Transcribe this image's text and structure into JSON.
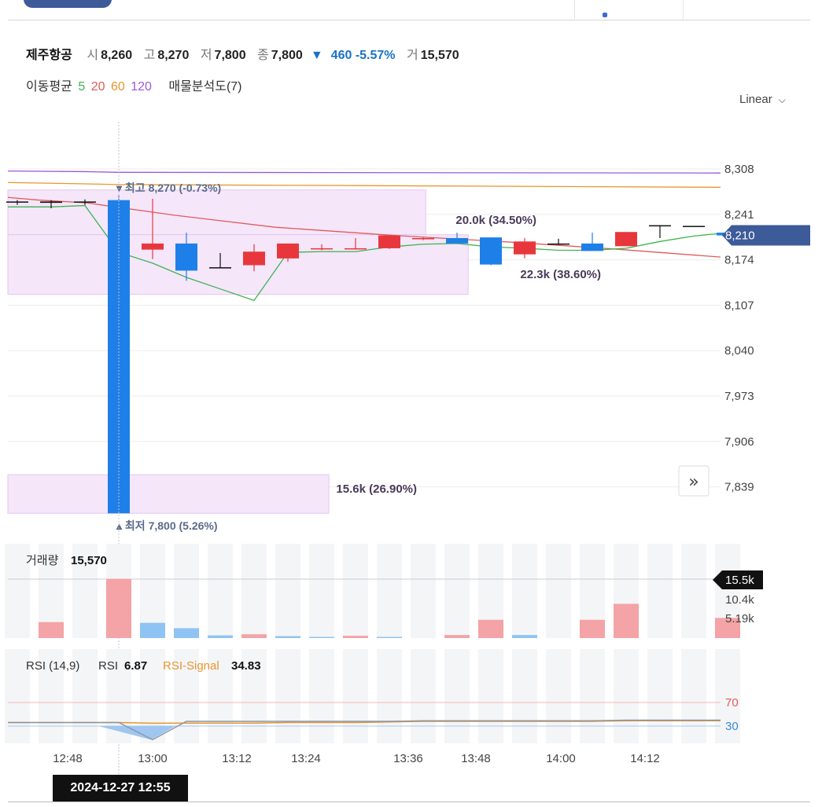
{
  "header": {
    "name": "제주항공",
    "open_label": "시",
    "open": "8,260",
    "high_label": "고",
    "high": "8,270",
    "low_label": "저",
    "low": "7,800",
    "close_label": "종",
    "close": "7,800",
    "change_arrow": "▼",
    "change": "460 -5.57%",
    "volume_label": "거",
    "volume": "15,570"
  },
  "ma": {
    "label": "이동평균",
    "p5": "5",
    "p20": "20",
    "p60": "60",
    "p120": "120",
    "volume_profile": "매물분석도(7)"
  },
  "scale_mode": "Linear",
  "colors": {
    "up": "#e8373c",
    "down": "#1e7fe8",
    "ma5": "#3eb44f",
    "ma20": "#e25a5a",
    "ma60": "#e8962f",
    "ma120": "#9b59d6",
    "profile": "#f5e6fa",
    "rsi": "#8a96a8",
    "signal": "#e8962f"
  },
  "chart_data": {
    "type": "candlestick",
    "price_ticks": [
      "8,308",
      "8,241",
      "8,174",
      "8,107",
      "8,040",
      "7,973",
      "7,906",
      "7,839"
    ],
    "price_tick_values": [
      8308,
      8241,
      8174,
      8107,
      8040,
      7973,
      7906,
      7839
    ],
    "current_price": "8,210",
    "current_price_value": 8210,
    "time_ticks": [
      "12:48",
      "13:00",
      "13:12",
      "13:24",
      "13:36",
      "13:48",
      "14:00",
      "14:12"
    ],
    "candles": [
      {
        "o": 8260,
        "h": 8262,
        "l": 8255,
        "c": 8260
      },
      {
        "o": 8260,
        "h": 8262,
        "l": 8250,
        "c": 8258
      },
      {
        "o": 8260,
        "h": 8263,
        "l": 8255,
        "c": 8260
      },
      {
        "o": 8262,
        "h": 8270,
        "l": 7800,
        "c": 7800
      },
      {
        "o": 8189,
        "h": 8264,
        "l": 8175,
        "c": 8198
      },
      {
        "o": 8198,
        "h": 8214,
        "l": 8143,
        "c": 8158
      },
      {
        "o": 8163,
        "h": 8184,
        "l": 8162,
        "c": 8163
      },
      {
        "o": 8166,
        "h": 8197,
        "l": 8157,
        "c": 8186
      },
      {
        "o": 8176,
        "h": 8197,
        "l": 8171,
        "c": 8198
      },
      {
        "o": 8190,
        "h": 8197,
        "l": 8188,
        "c": 8191
      },
      {
        "o": 8190,
        "h": 8206,
        "l": 8189,
        "c": 8191
      },
      {
        "o": 8191,
        "h": 8206,
        "l": 8190,
        "c": 8210
      },
      {
        "o": 8206,
        "h": 8207,
        "l": 8203,
        "c": 8206
      },
      {
        "o": 8206,
        "h": 8214,
        "l": 8198,
        "c": 8198
      },
      {
        "o": 8207,
        "h": 8207,
        "l": 8166,
        "c": 8167
      },
      {
        "o": 8182,
        "h": 8206,
        "l": 8176,
        "c": 8201
      },
      {
        "o": 8198,
        "h": 8205,
        "l": 8196,
        "c": 8198
      },
      {
        "o": 8198,
        "h": 8214,
        "l": 8187,
        "c": 8187
      },
      {
        "o": 8194,
        "h": 8215,
        "l": 8194,
        "c": 8215
      },
      {
        "o": 8225,
        "h": 8225,
        "l": 8206,
        "c": 8225
      },
      {
        "o": 8224,
        "h": 8224,
        "l": 8224,
        "c": 8224
      },
      {
        "o": 8214,
        "h": 8214,
        "l": 8206,
        "c": 8210
      }
    ],
    "ma5": [
      8252,
      8252,
      8254,
      8185,
      8169,
      8148,
      8131,
      8114,
      8185,
      8186,
      8186,
      8193,
      8197,
      8198,
      8193,
      8191,
      8188,
      8188,
      8191,
      8201,
      8209,
      8214
    ],
    "ma20": [
      8266,
      8262,
      8258
    ],
    "ma60": [
      8288,
      8286,
      8285,
      8281
    ],
    "ma120": [
      8305,
      8304,
      8303,
      8302
    ],
    "high_marker": "최고 8,270 (-0.73%)",
    "low_marker": "최저 7,800 (5.26%)",
    "volume_profile": [
      {
        "label": "20.0k (34.50%)",
        "from": 8211,
        "to": 8277,
        "width": 0.69
      },
      {
        "label": "22.3k (38.60%)",
        "from": 8123,
        "to": 8211,
        "width": 0.76
      },
      {
        "label": "15.6k (26.90%)",
        "from": 7800,
        "to": 7857,
        "width": 0.53
      }
    ],
    "volume_title": "거래량",
    "volume_value": "15,570",
    "volume_ticks": [
      "15.5k",
      "10.4k",
      "5.19k"
    ],
    "volume_tick_values": [
      15500,
      10400,
      5190
    ],
    "volumes": [
      0,
      4200,
      0,
      15570,
      4000,
      2600,
      700,
      1000,
      500,
      300,
      600,
      300,
      0,
      800,
      4800,
      800,
      0,
      4800,
      9000,
      0,
      0,
      5300
    ],
    "volume_up": [
      false,
      true,
      false,
      true,
      false,
      false,
      false,
      true,
      false,
      false,
      true,
      false,
      false,
      true,
      true,
      false,
      false,
      true,
      true,
      false,
      false,
      true
    ],
    "rsi_title": "RSI (14,9)",
    "rsi_label": "RSI",
    "rsi_value": "6.87",
    "signal_label": "RSI-Signal",
    "signal_value": "34.83",
    "rsi_ticks": [
      "70",
      "30"
    ],
    "rsi": [
      36,
      36,
      36,
      36,
      6.87,
      38,
      38,
      38,
      38,
      38,
      38,
      38,
      39,
      39,
      39,
      39,
      39,
      39,
      40,
      40,
      40,
      40
    ],
    "rsi_signal": [
      36,
      36,
      36,
      36,
      34.83,
      35,
      35,
      35,
      36,
      36,
      36,
      37,
      38,
      38,
      38,
      38,
      38,
      38,
      39,
      39,
      39,
      39
    ],
    "crosshair_date": "2024-12-27 12:55"
  }
}
